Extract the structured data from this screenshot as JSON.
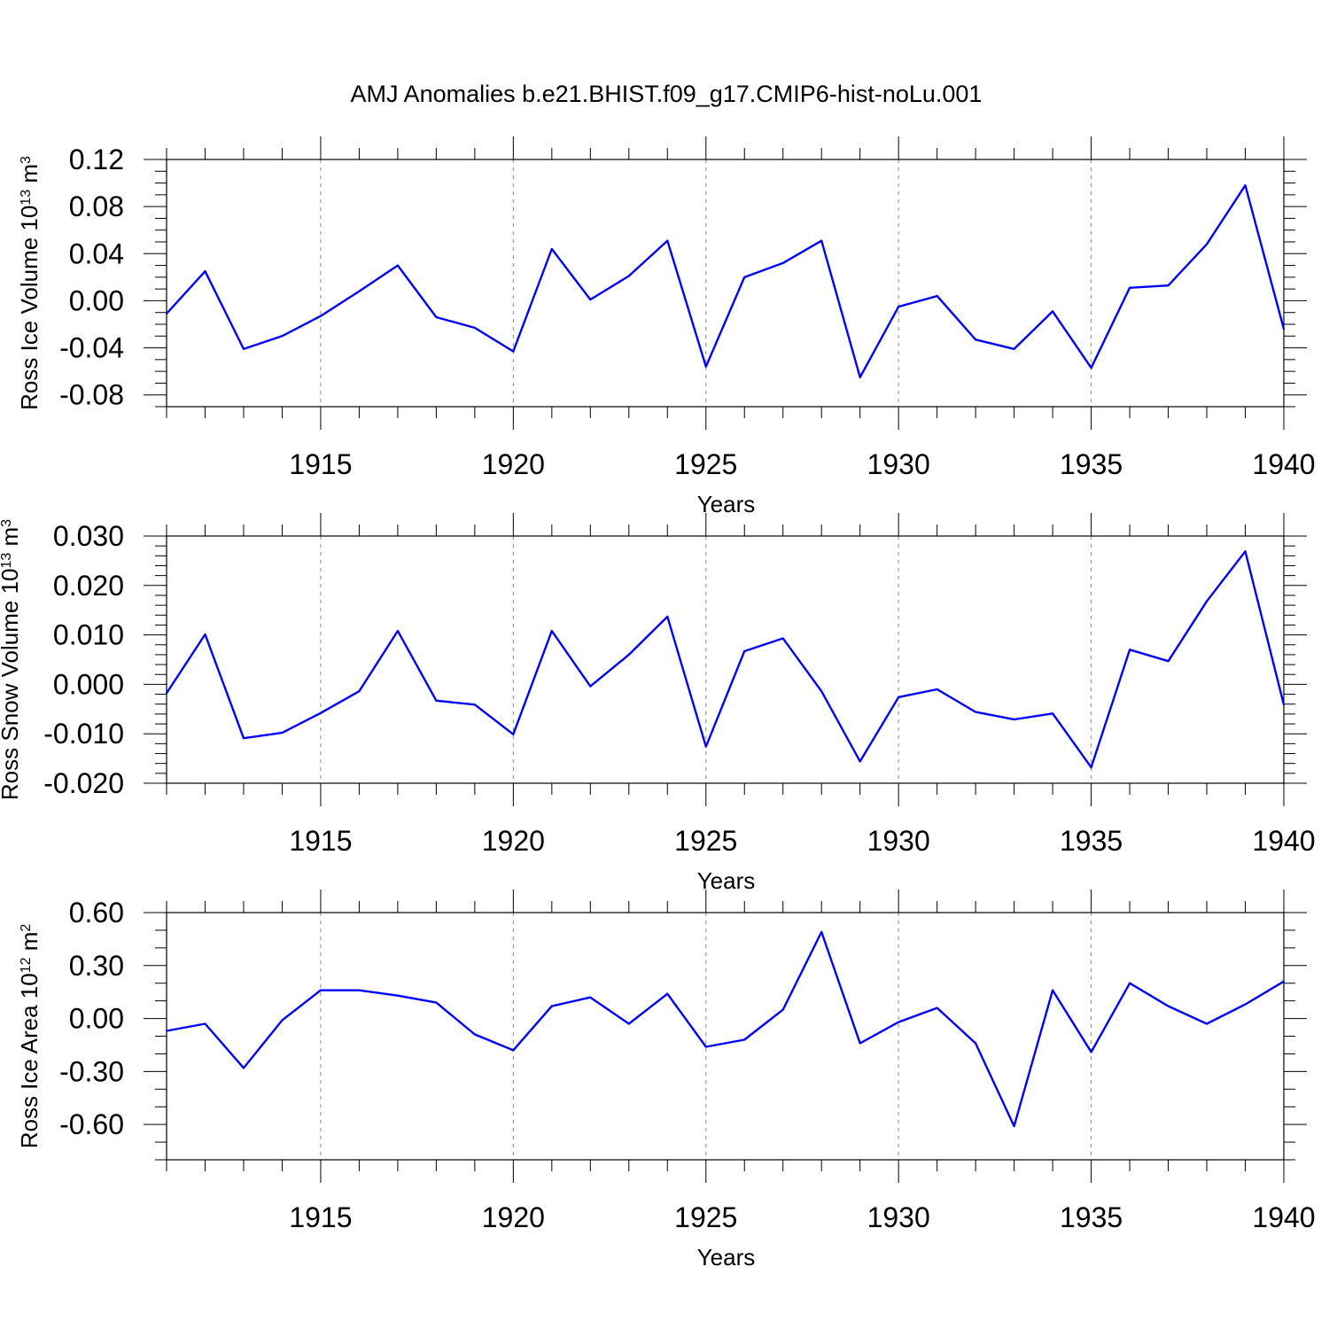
{
  "title": "AMJ Anomalies b.e21.BHIST.f09_g17.CMIP6-hist-noLu.001",
  "colors": {
    "line": "#0000ff",
    "axis": "#000000",
    "grid": "#888888"
  },
  "chart_data": [
    {
      "type": "line",
      "ylabel": {
        "main": "Ross Ice Volume 10",
        "exp": "13",
        "unit": " m",
        "unit_exp": "3"
      },
      "xlabel": "Years",
      "xlim": [
        1911,
        1940
      ],
      "ylim": [
        -0.09,
        0.12
      ],
      "yticks": [
        0.12,
        0.08,
        0.04,
        0.0,
        -0.04,
        -0.08
      ],
      "ytick_labels": [
        "0.12",
        "0.08",
        "0.04",
        "0.00",
        "-0.04",
        "-0.08"
      ],
      "yminor_step": 0.01,
      "xticks": [
        1915,
        1920,
        1925,
        1930,
        1935,
        1940
      ],
      "xtick_labels": [
        "1915",
        "1920",
        "1925",
        "1930",
        "1935",
        "1940"
      ],
      "grid": "vertical dashed at major x ticks",
      "x": [
        1911,
        1912,
        1913,
        1914,
        1915,
        1916,
        1917,
        1918,
        1919,
        1920,
        1921,
        1922,
        1923,
        1924,
        1925,
        1926,
        1927,
        1928,
        1929,
        1930,
        1931,
        1932,
        1933,
        1934,
        1935,
        1936,
        1937,
        1938,
        1939,
        1940
      ],
      "series": [
        {
          "values": [
            -0.011,
            0.025,
            -0.041,
            -0.03,
            -0.013,
            0.008,
            0.03,
            -0.014,
            -0.023,
            -0.043,
            0.044,
            0.001,
            0.021,
            0.051,
            -0.056,
            0.02,
            0.032,
            0.051,
            -0.065,
            -0.005,
            0.004,
            -0.033,
            -0.041,
            -0.009,
            -0.057,
            0.011,
            0.013,
            0.048,
            0.098,
            -0.024
          ]
        }
      ]
    },
    {
      "type": "line",
      "ylabel": {
        "main": "Ross Snow Volume 10",
        "exp": "13",
        "unit": " m",
        "unit_exp": "3"
      },
      "xlabel": "Years",
      "xlim": [
        1911,
        1940
      ],
      "ylim": [
        -0.02,
        0.03
      ],
      "yticks": [
        0.03,
        0.02,
        0.01,
        0.0,
        -0.01,
        -0.02
      ],
      "ytick_labels": [
        "0.030",
        "0.020",
        "0.010",
        "0.000",
        "-0.010",
        "-0.020"
      ],
      "yminor_step": 0.002,
      "xticks": [
        1915,
        1920,
        1925,
        1930,
        1935,
        1940
      ],
      "xtick_labels": [
        "1915",
        "1920",
        "1925",
        "1930",
        "1935",
        "1940"
      ],
      "grid": "vertical dashed at major x ticks",
      "x": [
        1911,
        1912,
        1913,
        1914,
        1915,
        1916,
        1917,
        1918,
        1919,
        1920,
        1921,
        1922,
        1923,
        1924,
        1925,
        1926,
        1927,
        1928,
        1929,
        1930,
        1931,
        1932,
        1933,
        1934,
        1935,
        1936,
        1937,
        1938,
        1939,
        1940
      ],
      "series": [
        {
          "values": [
            -0.0018,
            0.0101,
            -0.0109,
            -0.0098,
            -0.0058,
            -0.0014,
            0.0108,
            -0.0033,
            -0.0041,
            -0.0101,
            0.0108,
            -0.0004,
            0.006,
            0.0137,
            -0.0126,
            0.0067,
            0.0093,
            -0.0014,
            -0.0156,
            -0.0026,
            -0.001,
            -0.0056,
            -0.0071,
            -0.0059,
            -0.0168,
            0.007,
            0.0047,
            0.0168,
            0.0269,
            -0.0041
          ]
        }
      ]
    },
    {
      "type": "line",
      "ylabel": {
        "main": "Ross Ice Area 10",
        "exp": "12",
        "unit": " m",
        "unit_exp": "2"
      },
      "xlabel": "Years",
      "xlim": [
        1911,
        1940
      ],
      "ylim": [
        -0.8,
        0.6
      ],
      "yticks": [
        0.6,
        0.3,
        0.0,
        -0.3,
        -0.6
      ],
      "ytick_labels": [
        "0.60",
        "0.30",
        "0.00",
        "-0.30",
        "-0.60"
      ],
      "yminor_step": 0.1,
      "xticks": [
        1915,
        1920,
        1925,
        1930,
        1935,
        1940
      ],
      "xtick_labels": [
        "1915",
        "1920",
        "1925",
        "1930",
        "1935",
        "1940"
      ],
      "grid": "vertical dashed at major x ticks",
      "x": [
        1911,
        1912,
        1913,
        1914,
        1915,
        1916,
        1917,
        1918,
        1919,
        1920,
        1921,
        1922,
        1923,
        1924,
        1925,
        1926,
        1927,
        1928,
        1929,
        1930,
        1931,
        1932,
        1933,
        1934,
        1935,
        1936,
        1937,
        1938,
        1939,
        1940
      ],
      "series": [
        {
          "values": [
            -0.07,
            -0.03,
            -0.28,
            -0.01,
            0.16,
            0.16,
            0.13,
            0.09,
            -0.09,
            -0.18,
            0.07,
            0.12,
            -0.03,
            0.14,
            -0.16,
            -0.12,
            0.05,
            0.49,
            -0.14,
            -0.02,
            0.06,
            -0.14,
            -0.61,
            0.16,
            -0.19,
            0.2,
            0.07,
            -0.03,
            0.08,
            0.21
          ]
        }
      ]
    }
  ]
}
